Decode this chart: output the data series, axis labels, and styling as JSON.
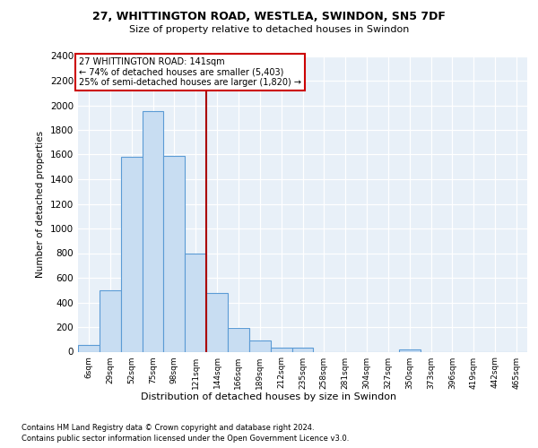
{
  "title_line1": "27, WHITTINGTON ROAD, WESTLEA, SWINDON, SN5 7DF",
  "title_line2": "Size of property relative to detached houses in Swindon",
  "xlabel": "Distribution of detached houses by size in Swindon",
  "ylabel": "Number of detached properties",
  "categories": [
    "6sqm",
    "29sqm",
    "52sqm",
    "75sqm",
    "98sqm",
    "121sqm",
    "144sqm",
    "166sqm",
    "189sqm",
    "212sqm",
    "235sqm",
    "258sqm",
    "281sqm",
    "304sqm",
    "327sqm",
    "350sqm",
    "373sqm",
    "396sqm",
    "419sqm",
    "442sqm",
    "465sqm"
  ],
  "values": [
    55,
    500,
    1580,
    1950,
    1590,
    800,
    475,
    195,
    90,
    35,
    30,
    0,
    0,
    0,
    0,
    20,
    0,
    0,
    0,
    0,
    0
  ],
  "bar_color": "#c8ddf2",
  "bar_edge_color": "#5b9bd5",
  "vline_color": "#aa0000",
  "annotation_text": "27 WHITTINGTON ROAD: 141sqm\n← 74% of detached houses are smaller (5,403)\n25% of semi-detached houses are larger (1,820) →",
  "annotation_box_edge": "#cc0000",
  "ylim": [
    0,
    2400
  ],
  "yticks": [
    0,
    200,
    400,
    600,
    800,
    1000,
    1200,
    1400,
    1600,
    1800,
    2000,
    2200,
    2400
  ],
  "footnote1": "Contains HM Land Registry data © Crown copyright and database right 2024.",
  "footnote2": "Contains public sector information licensed under the Open Government Licence v3.0.",
  "plot_bg_color": "#e8f0f8"
}
